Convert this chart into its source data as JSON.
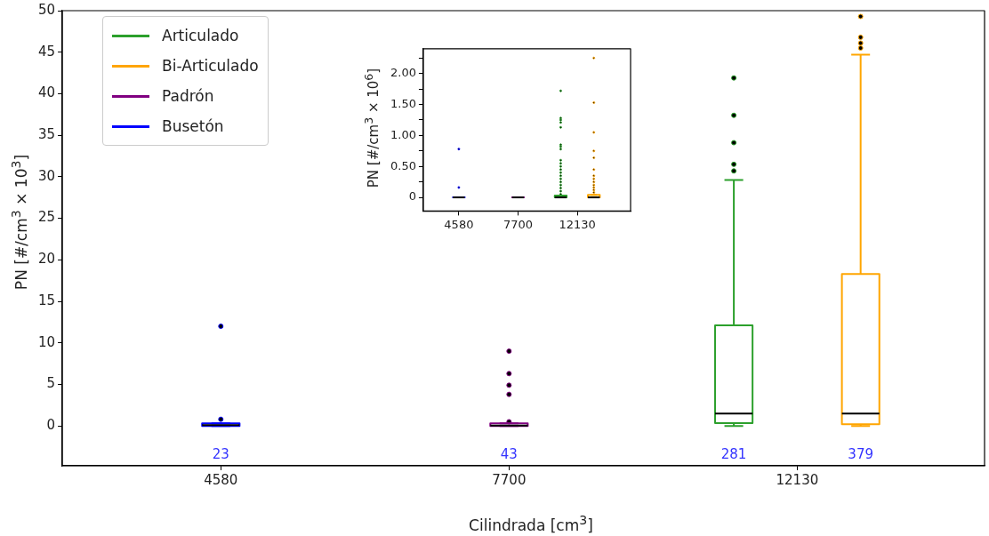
{
  "chart_data": [
    {
      "type": "box",
      "categories": [
        "4580",
        "7700",
        "12130"
      ],
      "xlabel": "Cilindrada [cm$^{3}$]",
      "ylabel": "PN [#/cm$^{3}$  × 10$^{3}$]",
      "ylim": [
        -4.8,
        50
      ],
      "yticks": [
        0,
        5,
        10,
        15,
        20,
        25,
        30,
        35,
        40,
        45,
        50
      ],
      "legend": "top left",
      "series": [
        {
          "name": "Articulado",
          "color": "#2ca02c",
          "boxes": [
            null,
            null,
            {
              "low": 0,
              "q1": 0.35,
              "median": 1.5,
              "q3": 12.1,
              "high": 29.6,
              "outliers": [
                30.7,
                31.5,
                34.1,
                37.4,
                41.9
              ]
            }
          ],
          "value_labels": [
            null,
            null,
            "281"
          ]
        },
        {
          "name": "Bi-Articulado",
          "color": "#ffa500",
          "boxes": [
            null,
            null,
            {
              "low": 0,
              "q1": 0.2,
              "median": 1.5,
              "q3": 18.3,
              "high": 44.7,
              "outliers": [
                45.5,
                46.1,
                46.8,
                49.3
              ]
            }
          ],
          "value_labels": [
            null,
            null,
            "379"
          ]
        },
        {
          "name": "Padrón",
          "color": "#800080",
          "boxes": [
            null,
            {
              "low": 0,
              "q1": 0,
              "median": 0.05,
              "q3": 0.3,
              "high": 0.3,
              "outliers": [
                0.5,
                3.8,
                4.9,
                6.3,
                9.0
              ]
            },
            null
          ],
          "value_labels": [
            null,
            "43",
            null
          ]
        },
        {
          "name": "Busetón",
          "color": "#0000ff",
          "boxes": [
            {
              "low": 0,
              "q1": 0,
              "median": 0.1,
              "q3": 0.3,
              "high": 0.3,
              "outliers": [
                0.8,
                12.0
              ]
            },
            null,
            null
          ],
          "value_labels": [
            "23",
            null,
            null
          ]
        }
      ]
    },
    {
      "type": "box",
      "categories": [
        "4580",
        "7700",
        "12130"
      ],
      "ylabel": "PN [#/cm$^{3}$  × 10$^{6}$]",
      "ylim": [
        -0.22,
        2.4
      ],
      "yticks": [
        0,
        {
          "value": 0.25,
          "label": null
        },
        {
          "value": 0.5,
          "label": "0.50"
        },
        {
          "value": 0.75,
          "label": null
        },
        {
          "value": 1,
          "label": "1.00"
        },
        {
          "value": 1.25,
          "label": null
        },
        {
          "value": 1.5,
          "label": "1.50"
        },
        {
          "value": 1.75,
          "label": null
        },
        {
          "value": 2,
          "label": "2.00"
        },
        {
          "value": 2.25,
          "label": null
        }
      ],
      "series": [
        {
          "color": "#2ca02c",
          "boxes": [
            null,
            null,
            {
              "low": 0,
              "q1": 0,
              "median": 0,
              "q3": 0.03,
              "high": 0.03,
              "outliers": [
                0.05,
                0.1,
                0.15,
                0.2,
                0.25,
                0.3,
                0.35,
                0.4,
                0.45,
                0.5,
                0.55,
                0.6,
                0.78,
                0.82,
                0.85,
                1.13,
                1.21,
                1.25,
                1.28,
                1.72
              ]
            }
          ]
        },
        {
          "color": "#ffa500",
          "boxes": [
            null,
            null,
            {
              "low": 0,
              "q1": 0,
              "median": 0,
              "q3": 0.04,
              "high": 0.04,
              "outliers": [
                0.08,
                0.12,
                0.16,
                0.2,
                0.25,
                0.3,
                0.35,
                0.45,
                0.64,
                0.75,
                1.05,
                1.53,
                2.25
              ]
            }
          ]
        },
        {
          "color": "#800080",
          "boxes": [
            null,
            {
              "low": 0,
              "q1": 0,
              "median": 0,
              "q3": 0.0003,
              "high": 0.0004
            },
            null
          ]
        },
        {
          "color": "#0000ff",
          "boxes": [
            {
              "low": 0,
              "q1": 0,
              "median": 0,
              "q3": 0.0003,
              "high": 0.0004,
              "outliers": [
                0.16,
                0.78
              ]
            },
            null,
            null
          ]
        }
      ]
    }
  ]
}
